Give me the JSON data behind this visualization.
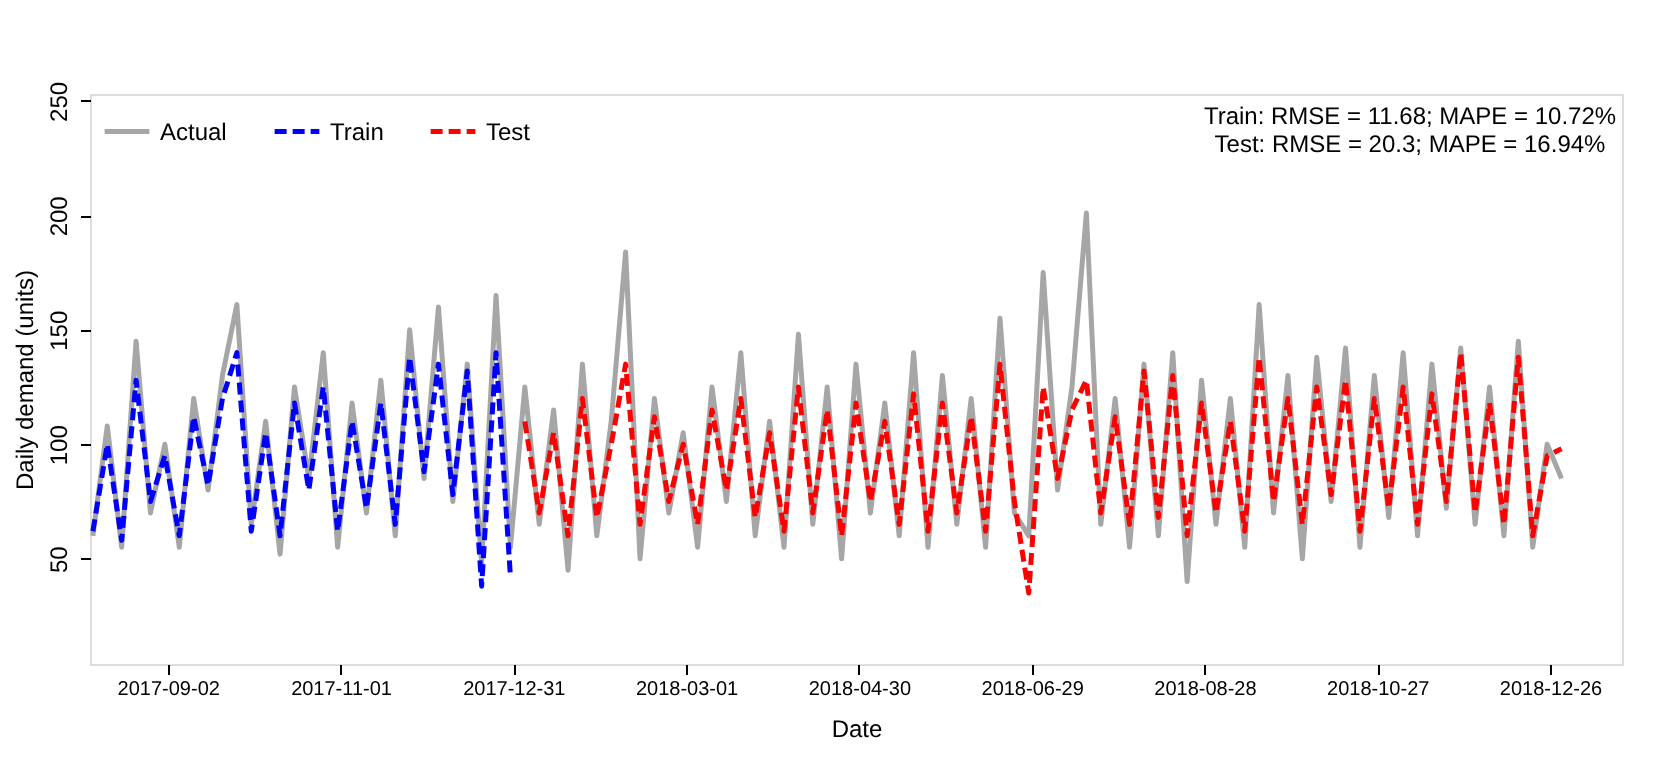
{
  "chart_data": {
    "type": "line",
    "xlabel": "Date",
    "ylabel": "Daily demand (units)",
    "annotations": [
      "Train: RMSE = 11.68; MAPE = 10.72%",
      "Test: RMSE = 20.3; MAPE = 16.94%"
    ],
    "xlim": [
      "2017-08-06",
      "2019-01-20"
    ],
    "ylim": [
      4,
      253
    ],
    "xticks": [
      "2017-09-02",
      "2017-11-01",
      "2017-12-31",
      "2018-03-01",
      "2018-04-30",
      "2018-06-29",
      "2018-08-28",
      "2018-10-27",
      "2018-12-26"
    ],
    "yticks": [
      50,
      100,
      150,
      200,
      250
    ],
    "grid": false,
    "legend": "top left",
    "series": [
      {
        "name": "Actual",
        "color": "#a6a6a6",
        "line_style": "solid",
        "x": [
          "2017-08-07",
          "2017-08-12",
          "2017-08-17",
          "2017-08-22",
          "2017-08-27",
          "2017-09-01",
          "2017-09-06",
          "2017-09-11",
          "2017-09-16",
          "2017-09-21",
          "2017-09-26",
          "2017-10-01",
          "2017-10-06",
          "2017-10-11",
          "2017-10-16",
          "2017-10-21",
          "2017-10-26",
          "2017-10-31",
          "2017-11-05",
          "2017-11-10",
          "2017-11-15",
          "2017-11-20",
          "2017-11-25",
          "2017-11-30",
          "2017-12-05",
          "2017-12-10",
          "2017-12-15",
          "2017-12-20",
          "2017-12-25",
          "2017-12-30",
          "2018-01-04",
          "2018-01-09",
          "2018-01-14",
          "2018-01-19",
          "2018-01-24",
          "2018-01-29",
          "2018-02-03",
          "2018-02-08",
          "2018-02-13",
          "2018-02-18",
          "2018-02-23",
          "2018-02-28",
          "2018-03-05",
          "2018-03-10",
          "2018-03-15",
          "2018-03-20",
          "2018-03-25",
          "2018-03-30",
          "2018-04-04",
          "2018-04-09",
          "2018-04-14",
          "2018-04-19",
          "2018-04-24",
          "2018-04-29",
          "2018-05-04",
          "2018-05-09",
          "2018-05-14",
          "2018-05-19",
          "2018-05-24",
          "2018-05-29",
          "2018-06-03",
          "2018-06-08",
          "2018-06-13",
          "2018-06-18",
          "2018-06-23",
          "2018-06-28",
          "2018-07-03",
          "2018-07-08",
          "2018-07-13",
          "2018-07-18",
          "2018-07-23",
          "2018-07-28",
          "2018-08-02",
          "2018-08-07",
          "2018-08-12",
          "2018-08-17",
          "2018-08-22",
          "2018-08-27",
          "2018-09-01",
          "2018-09-06",
          "2018-09-11",
          "2018-09-16",
          "2018-09-21",
          "2018-09-26",
          "2018-10-01",
          "2018-10-06",
          "2018-10-11",
          "2018-10-16",
          "2018-10-21",
          "2018-10-26",
          "2018-10-31",
          "2018-11-05",
          "2018-11-10",
          "2018-11-15",
          "2018-11-20",
          "2018-11-25",
          "2018-11-30",
          "2018-12-05",
          "2018-12-10",
          "2018-12-15",
          "2018-12-20",
          "2018-12-25",
          "2018-12-30"
        ],
        "values": [
          60,
          108,
          55,
          145,
          70,
          100,
          55,
          120,
          80,
          130,
          161,
          65,
          110,
          52,
          125,
          85,
          140,
          55,
          118,
          70,
          128,
          60,
          150,
          85,
          160,
          75,
          135,
          48,
          165,
          55,
          125,
          65,
          115,
          45,
          135,
          60,
          110,
          184,
          50,
          120,
          70,
          105,
          55,
          125,
          75,
          140,
          60,
          110,
          55,
          148,
          65,
          125,
          50,
          135,
          70,
          118,
          60,
          140,
          55,
          130,
          65,
          120,
          55,
          155,
          70,
          60,
          175,
          80,
          125,
          201,
          65,
          120,
          55,
          135,
          60,
          140,
          40,
          128,
          65,
          120,
          55,
          161,
          70,
          130,
          50,
          138,
          75,
          142,
          55,
          130,
          68,
          140,
          60,
          135,
          72,
          142,
          65,
          125,
          60,
          145,
          55,
          100,
          85
        ]
      },
      {
        "name": "Train",
        "color": "#0000ff",
        "line_style": "dashed",
        "x": [
          "2017-08-07",
          "2017-08-12",
          "2017-08-17",
          "2017-08-22",
          "2017-08-27",
          "2017-09-01",
          "2017-09-06",
          "2017-09-11",
          "2017-09-16",
          "2017-09-21",
          "2017-09-26",
          "2017-10-01",
          "2017-10-06",
          "2017-10-11",
          "2017-10-16",
          "2017-10-21",
          "2017-10-26",
          "2017-10-31",
          "2017-11-05",
          "2017-11-10",
          "2017-11-15",
          "2017-11-20",
          "2017-11-25",
          "2017-11-30",
          "2017-12-05",
          "2017-12-10",
          "2017-12-15",
          "2017-12-20",
          "2017-12-25",
          "2017-12-30"
        ],
        "values": [
          62,
          100,
          58,
          128,
          75,
          95,
          60,
          112,
          82,
          120,
          140,
          62,
          105,
          60,
          118,
          80,
          125,
          62,
          110,
          72,
          118,
          65,
          138,
          88,
          135,
          78,
          132,
          38,
          140,
          42
        ]
      },
      {
        "name": "Test",
        "color": "#ff0000",
        "line_style": "dashed",
        "x": [
          "2018-01-04",
          "2018-01-09",
          "2018-01-14",
          "2018-01-19",
          "2018-01-24",
          "2018-01-29",
          "2018-02-03",
          "2018-02-08",
          "2018-02-13",
          "2018-02-18",
          "2018-02-23",
          "2018-02-28",
          "2018-03-05",
          "2018-03-10",
          "2018-03-15",
          "2018-03-20",
          "2018-03-25",
          "2018-03-30",
          "2018-04-04",
          "2018-04-09",
          "2018-04-14",
          "2018-04-19",
          "2018-04-24",
          "2018-04-29",
          "2018-05-04",
          "2018-05-09",
          "2018-05-14",
          "2018-05-19",
          "2018-05-24",
          "2018-05-29",
          "2018-06-03",
          "2018-06-08",
          "2018-06-13",
          "2018-06-18",
          "2018-06-23",
          "2018-06-28",
          "2018-07-03",
          "2018-07-08",
          "2018-07-13",
          "2018-07-18",
          "2018-07-23",
          "2018-07-28",
          "2018-08-02",
          "2018-08-07",
          "2018-08-12",
          "2018-08-17",
          "2018-08-22",
          "2018-08-27",
          "2018-09-01",
          "2018-09-06",
          "2018-09-11",
          "2018-09-16",
          "2018-09-21",
          "2018-09-26",
          "2018-10-01",
          "2018-10-06",
          "2018-10-11",
          "2018-10-16",
          "2018-10-21",
          "2018-10-26",
          "2018-10-31",
          "2018-11-05",
          "2018-11-10",
          "2018-11-15",
          "2018-11-20",
          "2018-11-25",
          "2018-11-30",
          "2018-12-05",
          "2018-12-10",
          "2018-12-15",
          "2018-12-20",
          "2018-12-25",
          "2018-12-30"
        ],
        "values": [
          110,
          70,
          105,
          60,
          120,
          68,
          100,
          135,
          65,
          112,
          75,
          100,
          65,
          115,
          80,
          120,
          68,
          105,
          62,
          125,
          70,
          115,
          60,
          118,
          75,
          110,
          65,
          122,
          62,
          118,
          70,
          112,
          62,
          135,
          75,
          35,
          125,
          85,
          115,
          128,
          70,
          112,
          65,
          132,
          68,
          130,
          60,
          118,
          70,
          110,
          62,
          138,
          75,
          120,
          65,
          125,
          78,
          128,
          62,
          120,
          72,
          125,
          65,
          122,
          75,
          140,
          70,
          118,
          65,
          138,
          60,
          95,
          98
        ]
      }
    ]
  }
}
